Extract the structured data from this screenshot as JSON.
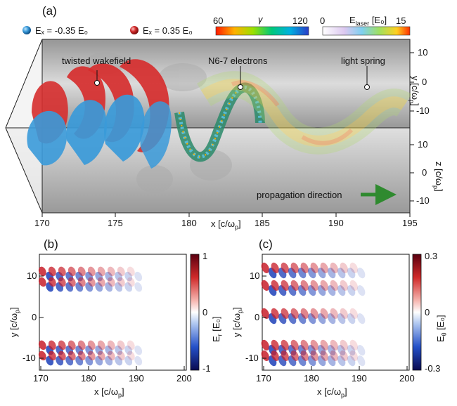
{
  "panel_a": {
    "label": "(a)",
    "legend_neg": "Eₓ = -0.35 E₀",
    "legend_pos": "Eₓ = 0.35 E₀",
    "gamma_label": "γ",
    "gamma_min": "60",
    "gamma_max": "120",
    "elaser_label": "E",
    "elaser_sub": "laser",
    "elaser_unit": "[E₀]",
    "elaser_min": "0",
    "elaser_max": "15",
    "annot_twisted": "twisted wakefield",
    "annot_electrons": "N6-7 electrons",
    "annot_spring": "light spring",
    "annot_propagation": "propagation direction",
    "x_label": "x [c/ω",
    "x_label_sub": "p",
    "x_label_end": "]",
    "x_ticks": [
      "170",
      "175",
      "180",
      "185",
      "190",
      "195"
    ],
    "y_label": "y [c/ω",
    "y_ticks": [
      "10",
      "0",
      "-10"
    ],
    "z_label": "z [c/ω",
    "z_ticks": [
      "10",
      "0",
      "-10"
    ],
    "colors": {
      "neg": "#3a9ad9",
      "pos": "#d02a2a",
      "arrow": "#2f8a2f"
    }
  },
  "panel_b": {
    "label": "(b)",
    "colorbar_label": "E",
    "colorbar_sub": "r",
    "colorbar_unit": "[E₀]",
    "colorbar_ticks": [
      "1",
      "0",
      "-1"
    ]
  },
  "panel_c": {
    "label": "(c)",
    "colorbar_label": "E",
    "colorbar_sub": "θ",
    "colorbar_unit": "[E₀]",
    "colorbar_ticks": [
      "0.3",
      "0",
      "-0.3"
    ]
  },
  "bottom_axes": {
    "x_ticks": [
      "170",
      "180",
      "190",
      "200"
    ],
    "y_ticks": [
      "10",
      "0",
      "-10"
    ],
    "x_label": "x [c/ω",
    "y_label": "y [c/ω",
    "sub": "p",
    "end": "]"
  }
}
